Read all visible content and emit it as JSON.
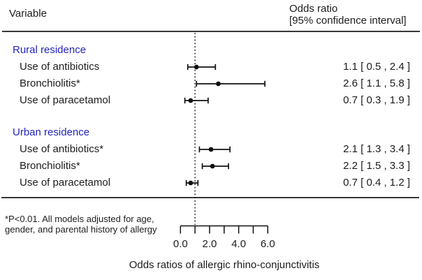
{
  "header": {
    "variable_label": "Variable",
    "odds_ratio_label": "Odds ratio",
    "ci_label": "[95% confidence interval]"
  },
  "footnote": {
    "line1": "*P<0.01. All models adjusted for age,",
    "line2": "gender, and parental history of allergy"
  },
  "colors": {
    "group_label": "#2323c0",
    "text": "#1c1c1c",
    "rule": "#383838",
    "plot": "#111111"
  },
  "chart_data": {
    "type": "forest",
    "xlabel": "Odds ratios of allergic rhino-conjunctivitis",
    "xlim": [
      0,
      6
    ],
    "reference_line": 1.0,
    "axis": {
      "ticks": [
        0,
        1,
        2,
        3,
        4,
        5,
        6
      ],
      "labeled_ticks": [
        {
          "value": 0,
          "label": "0.0"
        },
        {
          "value": 2,
          "label": "2.0"
        },
        {
          "value": 4,
          "label": "4.0"
        },
        {
          "value": 6,
          "label": "6.0"
        }
      ]
    },
    "groups": [
      {
        "label": "Rural residence",
        "items": [
          {
            "label": "Use of antibiotics",
            "or": 1.1,
            "ci": [
              0.5,
              2.4
            ],
            "value_text": "1.1 [ 0.5 , 2.4 ]"
          },
          {
            "label": "Bronchiolitis*",
            "or": 2.6,
            "ci": [
              1.1,
              5.8
            ],
            "value_text": "2.6 [ 1.1 , 5.8 ]"
          },
          {
            "label": "Use of paracetamol",
            "or": 0.7,
            "ci": [
              0.3,
              1.9
            ],
            "value_text": "0.7 [ 0.3 , 1.9 ]"
          }
        ]
      },
      {
        "label": "Urban residence",
        "items": [
          {
            "label": "Use of antibiotics*",
            "or": 2.1,
            "ci": [
              1.3,
              3.4
            ],
            "value_text": "2.1 [ 1.3 , 3.4 ]"
          },
          {
            "label": "Bronchiolitis*",
            "or": 2.2,
            "ci": [
              1.5,
              3.3
            ],
            "value_text": "2.2 [ 1.5 , 3.3 ]"
          },
          {
            "label": "Use of paracetamol",
            "or": 0.7,
            "ci": [
              0.4,
              1.2
            ],
            "value_text": "0.7 [ 0.4 , 1.2 ]"
          }
        ]
      }
    ]
  }
}
